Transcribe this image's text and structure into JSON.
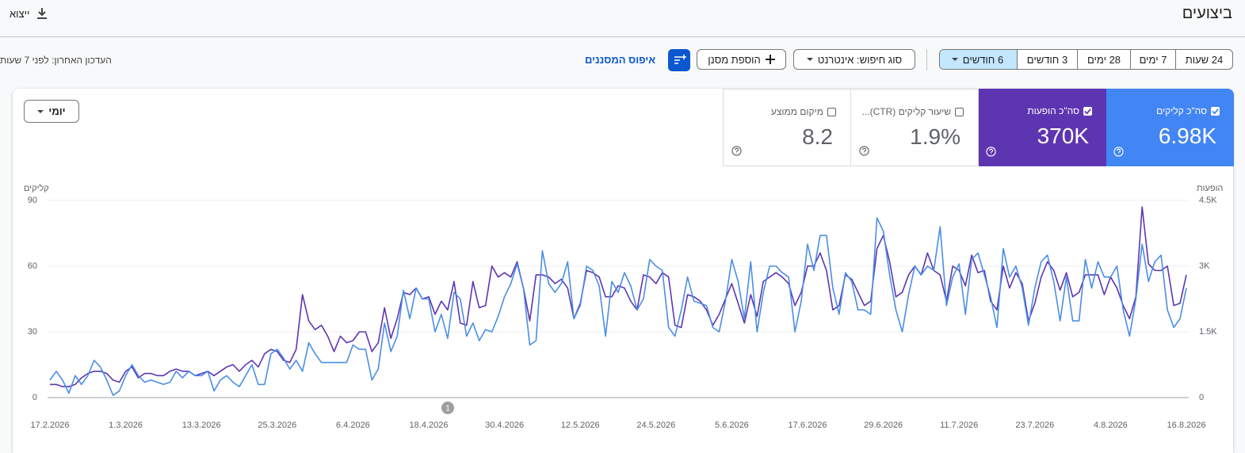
{
  "header": {
    "title": "ביצועים",
    "export": "ייצוא"
  },
  "toolbar": {
    "date_ranges": [
      "24 שעות",
      "7 ימים",
      "28 ימים",
      "3 חודשים",
      "6 חודשים"
    ],
    "search_type": "סוג חיפוש: אינטרנט",
    "add_filter": "הוספת מסנן",
    "reset": "איפוס המסננים",
    "last_update": "העדכון האחרון: לפני 7 שעות"
  },
  "metrics": [
    {
      "label": "סה\"כ קליקים",
      "value": "6.98K",
      "color": "#4285f4",
      "checked": true
    },
    {
      "label": "סה\"כ הופעות",
      "value": "370K",
      "color": "#5e35b1",
      "checked": true
    },
    {
      "label": "שיעור קליקים (CTR)...",
      "value": "1.9%",
      "checked": false
    },
    {
      "label": "מיקום ממוצע",
      "value": "8.2",
      "checked": false
    }
  ],
  "granularity": "יומי",
  "chart_data": {
    "type": "line",
    "y_label": "קליקים",
    "y2_label": "הופעות",
    "annotation": "1",
    "categories": [
      "17.2.2026",
      null,
      null,
      null,
      null,
      null,
      null,
      null,
      null,
      null,
      null,
      null,
      "1.3.2026",
      null,
      null,
      null,
      null,
      null,
      null,
      null,
      null,
      null,
      null,
      null,
      "13.3.2026",
      null,
      null,
      null,
      null,
      null,
      null,
      null,
      null,
      null,
      null,
      null,
      "25.3.2026",
      null,
      null,
      null,
      null,
      null,
      null,
      null,
      null,
      null,
      null,
      null,
      "6.4.2026",
      null,
      null,
      null,
      null,
      null,
      null,
      null,
      null,
      null,
      null,
      null,
      "18.4.2026",
      null,
      null,
      null,
      null,
      null,
      null,
      null,
      null,
      null,
      null,
      null,
      "30.4.2026",
      null,
      null,
      null,
      null,
      null,
      null,
      null,
      null,
      null,
      null,
      null,
      "12.5.2026",
      null,
      null,
      null,
      null,
      null,
      null,
      null,
      null,
      null,
      null,
      null,
      "24.5.2026",
      null,
      null,
      null,
      null,
      null,
      null,
      null,
      null,
      null,
      null,
      null,
      "5.6.2026",
      null,
      null,
      null,
      null,
      null,
      null,
      null,
      null,
      null,
      null,
      null,
      "17.6.2026",
      null,
      null,
      null,
      null,
      null,
      null,
      null,
      null,
      null,
      null,
      null,
      "29.6.2026",
      null,
      null,
      null,
      null,
      null,
      null,
      null,
      null,
      null,
      null,
      null,
      "11.7.2026",
      null,
      null,
      null,
      null,
      null,
      null,
      null,
      null,
      null,
      null,
      null,
      "23.7.2026",
      null,
      null,
      null,
      null,
      null,
      null,
      null,
      null,
      null,
      null,
      null,
      "4.8.2026",
      null,
      null,
      null,
      null,
      null,
      null,
      null,
      null,
      null,
      null,
      null,
      "16.8.2026"
    ],
    "series": [
      {
        "color": "#4a8ee6",
        "values": [
          8,
          12,
          8,
          2,
          10,
          6,
          10,
          17,
          14,
          8,
          1,
          3,
          10,
          15,
          10,
          7,
          8,
          7,
          6,
          7,
          12,
          9,
          12,
          10,
          10,
          12,
          3,
          8,
          10,
          7,
          5,
          10,
          15,
          6,
          6,
          20,
          22,
          18,
          13,
          17,
          12,
          25,
          20,
          16,
          16,
          16,
          16,
          16,
          24,
          22,
          22,
          8,
          13,
          34,
          21,
          28,
          49,
          36,
          50,
          45,
          45,
          30,
          38,
          27,
          48,
          45,
          28,
          34,
          26,
          31,
          30,
          37,
          46,
          52,
          61,
          50,
          24,
          26,
          67,
          52,
          48,
          52,
          62,
          36,
          42,
          60,
          58,
          51,
          28,
          53,
          48,
          57,
          51,
          40,
          45,
          63,
          60,
          58,
          32,
          28,
          40,
          55,
          44,
          43,
          42,
          32,
          30,
          44,
          63,
          53,
          36,
          62,
          30,
          48,
          60,
          60,
          57,
          55,
          30,
          44,
          70,
          58,
          74,
          74,
          50,
          38,
          57,
          53,
          40,
          40,
          38,
          82,
          76,
          56,
          40,
          30,
          47,
          60,
          56,
          60,
          58,
          78,
          42,
          55,
          61,
          38,
          63,
          66,
          56,
          46,
          32,
          68,
          55,
          60,
          50,
          33,
          50,
          62,
          65,
          53,
          35,
          55,
          35,
          35,
          63,
          50,
          62,
          55,
          55,
          60,
          40,
          28,
          45,
          70,
          53,
          62,
          65,
          40,
          32,
          36,
          50
        ]
      },
      {
        "color": "#5e35b1",
        "axis": "y2",
        "values": [
          300,
          300,
          250,
          250,
          300,
          450,
          550,
          600,
          600,
          550,
          400,
          350,
          600,
          700,
          450,
          550,
          550,
          500,
          500,
          600,
          650,
          600,
          600,
          500,
          550,
          600,
          500,
          600,
          700,
          750,
          600,
          750,
          850,
          700,
          1000,
          1100,
          1050,
          850,
          800,
          1100,
          2350,
          1750,
          1550,
          1650,
          1400,
          1050,
          1400,
          1250,
          1300,
          1500,
          1500,
          1050,
          1250,
          2050,
          1350,
          1800,
          2400,
          2350,
          2500,
          2250,
          2300,
          1900,
          2200,
          2000,
          2650,
          1700,
          1650,
          2650,
          2050,
          2100,
          3000,
          2750,
          2850,
          2750,
          3100,
          2500,
          1750,
          2800,
          2800,
          2750,
          2600,
          2700,
          2500,
          1800,
          2150,
          2900,
          2850,
          2750,
          2300,
          2300,
          2550,
          2500,
          2200,
          2000,
          2800,
          2750,
          2600,
          2850,
          2750,
          1650,
          1600,
          2350,
          2300,
          2200,
          2000,
          1650,
          1900,
          2250,
          2600,
          2150,
          1700,
          2350,
          1850,
          2650,
          2750,
          2850,
          2750,
          2600,
          2100,
          2400,
          3000,
          3000,
          3300,
          2900,
          2000,
          2100,
          2800,
          2700,
          2400,
          2100,
          2200,
          3400,
          3700,
          3100,
          2300,
          2400,
          2800,
          3000,
          2800,
          3300,
          2900,
          2800,
          2200,
          3000,
          2900,
          2550,
          3250,
          2850,
          2900,
          2200,
          2000,
          3000,
          2500,
          2850,
          2600,
          1750,
          2150,
          2750,
          3100,
          2900,
          2450,
          2850,
          2300,
          2400,
          2800,
          2800,
          2800,
          2350,
          2750,
          2500,
          2100,
          1800,
          2300,
          4350,
          3050,
          2900,
          2900,
          3000,
          2100,
          2150,
          2800
        ]
      }
    ],
    "ylim": [
      0,
      90
    ],
    "yticks": [
      0,
      30,
      60,
      90
    ],
    "y2lim": [
      0,
      4500
    ],
    "y2ticks": [
      0,
      {
        "value": 1500,
        "label": "1.5K"
      },
      {
        "value": 3000,
        "label": "3K"
      },
      {
        "value": 4500,
        "label": "4.5K"
      }
    ],
    "grid": true
  }
}
